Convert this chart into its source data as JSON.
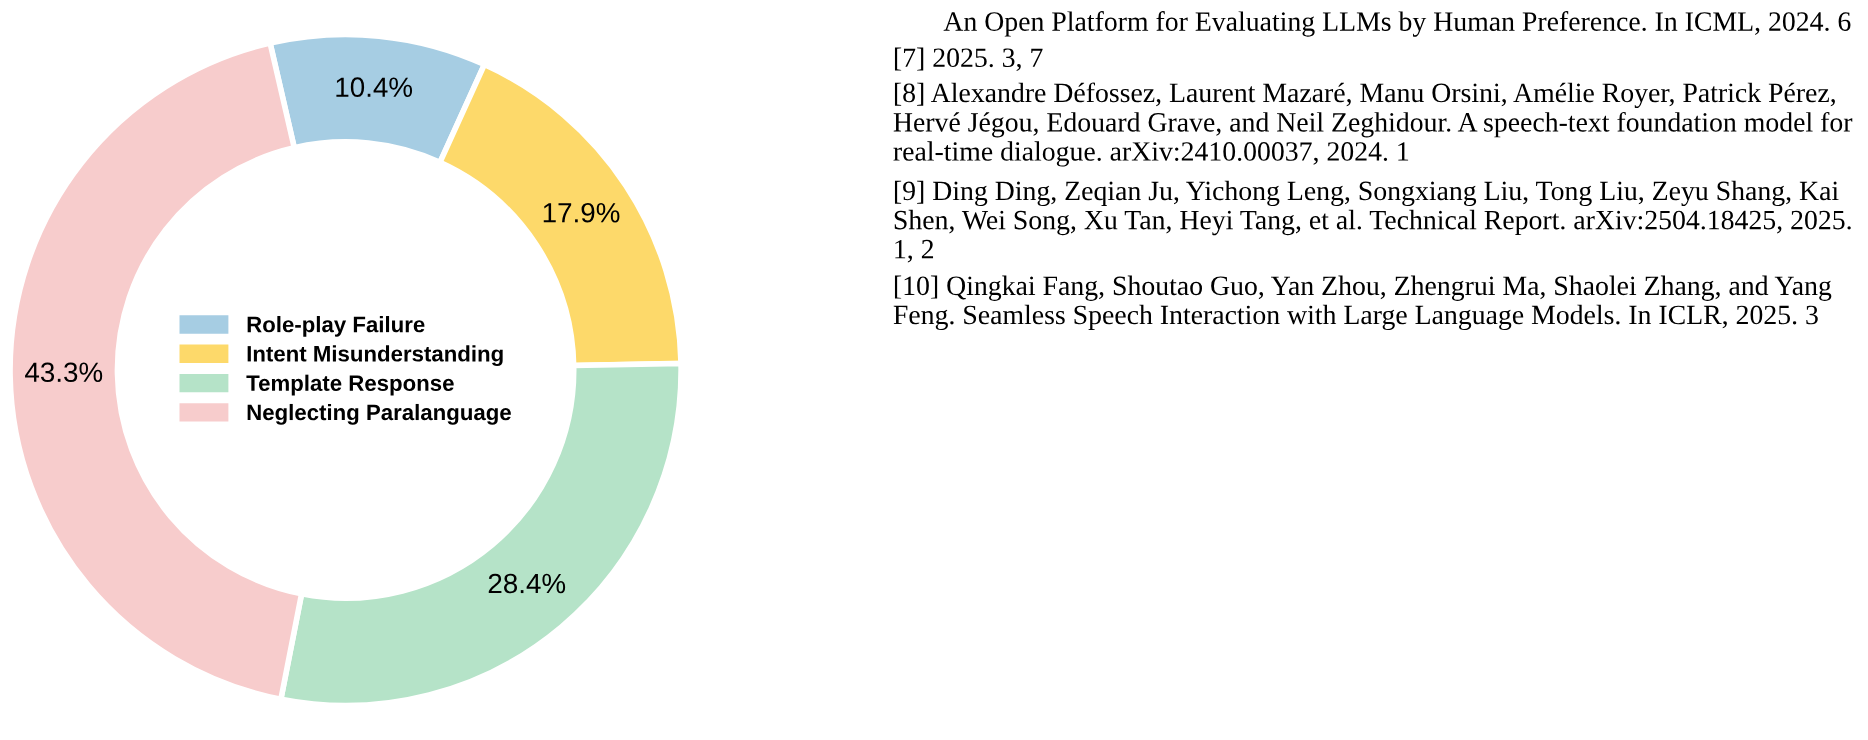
{
  "chart_data": {
    "type": "donut",
    "categories": [
      "Role-play Failure",
      "Intent Misunderstanding",
      "Template Response",
      "Neglecting Paralanguage"
    ],
    "values": [
      10.4,
      17.9,
      28.4,
      43.3
    ],
    "colors": [
      "#a6cde3",
      "#fdd96a",
      "#b5e3c8",
      "#f7cccc"
    ],
    "value_labels": [
      "10.4%",
      "17.9%",
      "28.4%",
      "43.3%"
    ],
    "legend": "center",
    "annotations": [
      "An Open Platform for Evaluating LLMs by Human Preference. In ICML, 2024. 6",
      "[7] 2025. 3, 7",
      "[8] Alexandre Défossez, Laurent Mazaré, Manu Orsini, Amélie Royer, Patrick Pérez, Hervé Jégou, Edouard Grave, and Neil Zeghidour. A speech-text foundation model for real-time dialogue. arXiv:2410.00037, 2024. 1",
      "[9] Ding Ding, Zeqian Ju, Yichong Leng, Songxiang Liu, Tong Liu, Zeyu Shang, Kai Shen, Wei Song, Xu Tan, Heyi Tang, et al. Technical Report. arXiv:2504.18425, 2025. 1, 2",
      "[10] Qingkai Fang, Shoutao Guo, Yan Zhou, Zhengrui Ma, Shaolei Zhang, and Yang Feng. Seamless Speech Interaction with Large Language Models. In ICLR, 2025. 3"
    ]
  }
}
